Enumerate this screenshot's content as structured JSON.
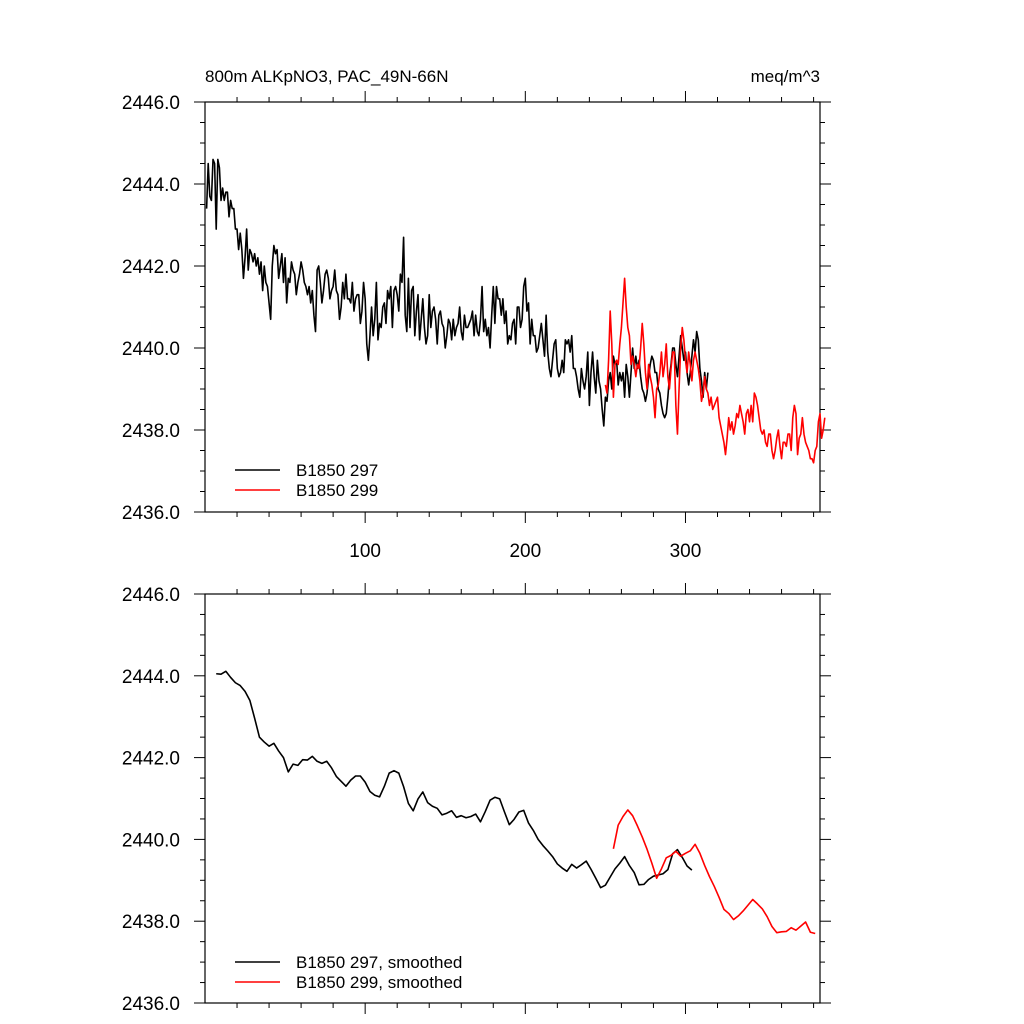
{
  "chart_data": [
    {
      "type": "line",
      "title": "800m ALKpNO3, PAC_49N-66N",
      "units": "meq/m^3",
      "xlim": [
        0,
        384
      ],
      "ylim": [
        2436.0,
        2446.0
      ],
      "x_ticks": [
        100,
        200,
        300
      ],
      "y_ticks": [
        "2436.0",
        "2438.0",
        "2440.0",
        "2442.0",
        "2444.0",
        "2446.0"
      ],
      "series": [
        {
          "name": "B1850 297",
          "color": "#000000",
          "x_start": 1,
          "values": [
            2443.4,
            2444.5,
            2443.7,
            2443.6,
            2444.6,
            2444.5,
            2442.9,
            2444.6,
            2444.4,
            2443.6,
            2443.9,
            2443.6,
            2443.8,
            2443.8,
            2443.2,
            2443.6,
            2443.4,
            2443.4,
            2442.9,
            2442.9,
            2442.4,
            2442.8,
            2442.4,
            2441.7,
            2442.2,
            2442.9,
            2441.9,
            2442.4,
            2442.3,
            2442.1,
            2442.3,
            2442.0,
            2442.2,
            2441.8,
            2442.1,
            2441.4,
            2442.0,
            2441.6,
            2441.5,
            2441.1,
            2440.7,
            2442.0,
            2442.5,
            2442.3,
            2442.4,
            2441.7,
            2442.0,
            2442.3,
            2441.6,
            2442.2,
            2441.1,
            2441.7,
            2441.6,
            2442.1,
            2441.9,
            2441.8,
            2441.3,
            2441.6,
            2441.8,
            2442.1,
            2441.9,
            2441.6,
            2441.5,
            2441.3,
            2441.5,
            2441.1,
            2441.4,
            2440.8,
            2440.4,
            2441.9,
            2442.0,
            2441.6,
            2441.1,
            2441.4,
            2441.8,
            2441.9,
            2441.7,
            2441.2,
            2441.4,
            2441.5,
            2441.9,
            2441.4,
            2441.3,
            2440.7,
            2441.0,
            2441.6,
            2441.2,
            2441.8,
            2441.2,
            2441.2,
            2441.1,
            2441.6,
            2440.9,
            2441.2,
            2441.3,
            2441.3,
            2440.6,
            2440.9,
            2441.6,
            2441.2,
            2440.1,
            2439.7,
            2440.3,
            2441.0,
            2440.3,
            2440.7,
            2441.6,
            2440.2,
            2440.6,
            2440.5,
            2441.0,
            2441.1,
            2440.6,
            2441.4,
            2441.2,
            2441.5,
            2440.5,
            2441.4,
            2441.5,
            2441.3,
            2440.9,
            2441.8,
            2441.6,
            2442.7,
            2440.8,
            2440.4,
            2441.7,
            2440.5,
            2441.4,
            2441.5,
            2440.3,
            2440.9,
            2441.3,
            2440.2,
            2440.7,
            2441.2,
            2440.5,
            2440.1,
            2440.3,
            2441.3,
            2440.5,
            2440.9,
            2441.0,
            2440.7,
            2440.1,
            2440.8,
            2440.9,
            2440.6,
            2440.5,
            2440.0,
            2440.3,
            2440.7,
            2440.6,
            2440.2,
            2440.7,
            2440.3,
            2440.5,
            2440.6,
            2441.0,
            2440.4,
            2440.2,
            2440.8,
            2440.5,
            2440.5,
            2440.6,
            2440.7,
            2440.9,
            2440.3,
            2440.8,
            2440.4,
            2440.3,
            2440.7,
            2441.5,
            2440.4,
            2440.7,
            2440.3,
            2440.5,
            2440.0,
            2440.8,
            2441.5,
            2440.6,
            2441.5,
            2441.2,
            2441.2,
            2440.8,
            2441.2,
            2440.6,
            2440.9,
            2440.1,
            2440.3,
            2440.2,
            2440.6,
            2440.7,
            2440.1,
            2441.0,
            2441.0,
            2440.5,
            2440.7,
            2441.5,
            2441.7,
            2440.9,
            2441.1,
            2440.1,
            2440.7,
            2440.3,
            2440.3,
            2439.9,
            2440.0,
            2440.3,
            2440.6,
            2440.2,
            2439.8,
            2440.8,
            2439.9,
            2439.5,
            2439.3,
            2439.7,
            2440.1,
            2440.2,
            2439.5,
            2439.3,
            2439.4,
            2439.7,
            2439.4,
            2440.2,
            2440.1,
            2440.2,
            2439.9,
            2440.3,
            2439.5,
            2439.5,
            2439.3,
            2439.0,
            2438.8,
            2439.5,
            2439.2,
            2439.0,
            2439.3,
            2439.9,
            2438.6,
            2439.4,
            2439.9,
            2439.3,
            2438.9,
            2439.7,
            2439.2,
            2439.0,
            2438.5,
            2438.1,
            2438.8,
            2438.7,
            2439.2,
            2439.4,
            2439.0,
            2439.8,
            2439.6,
            2439.7,
            2439.1,
            2439.4,
            2439.2,
            2439.4,
            2438.8,
            2439.6,
            2439.3,
            2438.8,
            2439.4,
            2440.0,
            2439.5,
            2439.8,
            2439.5,
            2439.7,
            2439.3,
            2439.0,
            2438.9,
            2438.7,
            2438.9,
            2439.3,
            2439.6,
            2439.8,
            2439.7,
            2439.4,
            2439.4,
            2439.0,
            2438.9,
            2438.6,
            2438.4,
            2438.3,
            2438.4,
            2438.8,
            2439.3,
            2439.6,
            2440.0,
            2440.0,
            2439.6,
            2439.3,
            2439.8,
            2440.3,
            2440.0,
            2439.7,
            2439.9,
            2439.4,
            2439.1,
            2439.4,
            2439.8,
            2440.2,
            2439.9,
            2440.4,
            2440.2,
            2439.5,
            2439.2,
            2438.8,
            2439.4,
            2439.0,
            2439.4
          ]
        },
        {
          "name": "B1850 299",
          "color": "#ff0000",
          "x_start": 250,
          "values": [
            2439.1,
            2438.9,
            2439.7,
            2440.9,
            2440.1,
            2438.8,
            2439.6,
            2439.7,
            2439.6,
            2440.1,
            2440.5,
            2441.1,
            2441.7,
            2441.0,
            2440.5,
            2440.3,
            2439.6,
            2439.8,
            2439.6,
            2439.3,
            2439.6,
            2439.5,
            2440.0,
            2440.6,
            2440.1,
            2439.4,
            2439.0,
            2439.6,
            2439.3,
            2439.1,
            2438.8,
            2438.3,
            2439.0,
            2439.1,
            2439.4,
            2439.9,
            2439.3,
            2439.6,
            2440.1,
            2439.3,
            2439.0,
            2439.5,
            2439.9,
            2439.9,
            2438.6,
            2437.9,
            2439.0,
            2440.0,
            2440.5,
            2440.2,
            2439.7,
            2439.4,
            2439.9,
            2439.6,
            2439.2,
            2439.7,
            2439.9,
            2439.7,
            2439.5,
            2439.2,
            2438.7,
            2438.9,
            2439.3,
            2439.0,
            2438.9,
            2438.6,
            2438.8,
            2438.5,
            2438.6,
            2438.7,
            2438.8,
            2438.3,
            2438.1,
            2437.9,
            2437.7,
            2437.4,
            2437.8,
            2438.3,
            2438.0,
            2438.2,
            2437.9,
            2438.1,
            2438.4,
            2438.3,
            2438.6,
            2438.4,
            2438.2,
            2437.9,
            2438.4,
            2438.5,
            2438.2,
            2438.6,
            2438.2,
            2438.9,
            2438.8,
            2438.6,
            2438.3,
            2438.0,
            2437.9,
            2438.0,
            2437.7,
            2437.6,
            2437.9,
            2437.9,
            2437.5,
            2437.3,
            2437.5,
            2437.8,
            2438.0,
            2437.6,
            2437.3,
            2437.7,
            2437.7,
            2437.6,
            2437.9,
            2437.9,
            2437.5,
            2438.3,
            2438.6,
            2438.4,
            2437.4,
            2437.8,
            2437.9,
            2438.3,
            2437.9,
            2437.7,
            2437.6,
            2437.5,
            2437.3,
            2437.3,
            2437.2,
            2437.5,
            2437.6,
            2438.2,
            2438.4,
            2437.8,
            2438.0,
            2438.3
          ]
        }
      ]
    },
    {
      "type": "line",
      "title": "",
      "xlim": [
        0,
        384
      ],
      "ylim": [
        2436.0,
        2446.0
      ],
      "y_ticks": [
        "2436.0",
        "2438.0",
        "2440.0",
        "2442.0",
        "2444.0",
        "2446.0"
      ],
      "series": [
        {
          "name": "B1850 297, smoothed",
          "color": "#000000",
          "x": [
            7,
            10,
            13,
            16,
            19,
            22,
            25,
            28,
            31,
            34,
            37,
            40,
            43,
            46,
            49,
            52,
            55,
            58,
            61,
            64,
            67,
            70,
            73,
            76,
            79,
            82,
            85,
            88,
            91,
            94,
            97,
            100,
            103,
            106,
            109,
            112,
            115,
            118,
            121,
            124,
            127,
            130,
            133,
            136,
            139,
            142,
            145,
            148,
            151,
            154,
            157,
            160,
            163,
            166,
            169,
            172,
            175,
            178,
            181,
            184,
            187,
            190,
            193,
            196,
            199,
            202,
            205,
            208,
            211,
            214,
            217,
            220,
            223,
            226,
            229,
            232,
            235,
            238,
            241,
            244,
            247,
            250,
            253,
            256,
            259,
            262,
            265,
            268,
            271,
            274,
            277,
            280,
            283,
            286,
            289,
            292,
            295,
            298,
            301,
            304
          ],
          "values": [
            2444.05,
            2444.04,
            2444.11,
            2443.96,
            2443.83,
            2443.76,
            2443.62,
            2443.4,
            2442.96,
            2442.5,
            2442.38,
            2442.28,
            2442.35,
            2442.16,
            2442.0,
            2441.65,
            2441.84,
            2441.81,
            2441.95,
            2441.94,
            2442.03,
            2441.91,
            2441.86,
            2441.91,
            2441.75,
            2441.54,
            2441.42,
            2441.3,
            2441.45,
            2441.55,
            2441.55,
            2441.4,
            2441.17,
            2441.08,
            2441.04,
            2441.3,
            2441.62,
            2441.68,
            2441.62,
            2441.29,
            2440.88,
            2440.7,
            2440.99,
            2441.16,
            2440.9,
            2440.81,
            2440.76,
            2440.6,
            2440.64,
            2440.7,
            2440.54,
            2440.58,
            2440.53,
            2440.56,
            2440.62,
            2440.43,
            2440.68,
            2440.96,
            2441.03,
            2440.99,
            2440.67,
            2440.36,
            2440.49,
            2440.67,
            2440.71,
            2440.4,
            2440.22,
            2440.0,
            2439.85,
            2439.72,
            2439.58,
            2439.4,
            2439.3,
            2439.22,
            2439.39,
            2439.3,
            2439.38,
            2439.47,
            2439.27,
            2439.05,
            2438.82,
            2438.88,
            2439.08,
            2439.28,
            2439.42,
            2439.58,
            2439.36,
            2439.19,
            2438.89,
            2438.9,
            2439.02,
            2439.1,
            2439.13,
            2439.16,
            2439.26,
            2439.65,
            2439.75,
            2439.56,
            2439.35,
            2439.25
          ]
        },
        {
          "name": "B1850 299, smoothed",
          "color": "#ff0000",
          "x": [
            255,
            258,
            261,
            264,
            267,
            270,
            273,
            276,
            279,
            282,
            285,
            288,
            291,
            294,
            297,
            300,
            303,
            306,
            309,
            312,
            315,
            318,
            321,
            324,
            327,
            330,
            333,
            336,
            339,
            342,
            345,
            348,
            351,
            354,
            357,
            360,
            363,
            366,
            369,
            372,
            375,
            378,
            381
          ],
          "values": [
            2439.77,
            2440.35,
            2440.56,
            2440.72,
            2440.58,
            2440.33,
            2440.06,
            2439.76,
            2439.42,
            2439.05,
            2439.28,
            2439.55,
            2439.61,
            2439.71,
            2439.59,
            2439.66,
            2439.72,
            2439.88,
            2439.66,
            2439.36,
            2439.09,
            2438.85,
            2438.58,
            2438.29,
            2438.19,
            2438.04,
            2438.13,
            2438.25,
            2438.39,
            2438.53,
            2438.42,
            2438.3,
            2438.11,
            2437.87,
            2437.72,
            2437.74,
            2437.75,
            2437.84,
            2437.78,
            2437.88,
            2437.98,
            2437.73,
            2437.7
          ]
        }
      ]
    }
  ]
}
